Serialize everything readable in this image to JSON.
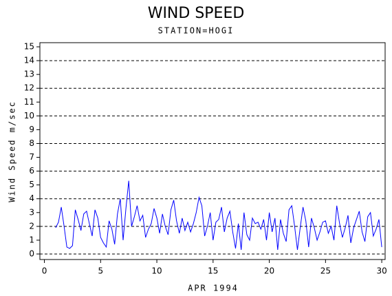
{
  "chart_data": {
    "type": "line",
    "title": "WIND SPEED",
    "subtitle": "STATION=HOGI",
    "x_label": "APR 1994",
    "y_label": "Wind Speed m/sec",
    "xlim": [
      -0.4,
      30.3
    ],
    "ylim": [
      -0.4,
      15.3
    ],
    "xticks": [
      0,
      5,
      10,
      15,
      20,
      25,
      30
    ],
    "yticks": [
      0,
      1,
      2,
      3,
      4,
      5,
      6,
      7,
      8,
      9,
      10,
      11,
      12,
      13,
      14,
      15
    ],
    "grid": true,
    "x": [
      1,
      1.25,
      1.5,
      1.75,
      2,
      2.25,
      2.5,
      2.75,
      3,
      3.25,
      3.5,
      3.75,
      4,
      4.25,
      4.5,
      4.75,
      5,
      5.25,
      5.5,
      5.75,
      6,
      6.25,
      6.5,
      6.75,
      7,
      7.25,
      7.5,
      7.75,
      8,
      8.25,
      8.5,
      8.75,
      9,
      9.25,
      9.5,
      9.75,
      10,
      10.25,
      10.5,
      10.75,
      11,
      11.25,
      11.5,
      11.75,
      12,
      12.25,
      12.5,
      12.75,
      13,
      13.25,
      13.5,
      13.75,
      14,
      14.25,
      14.5,
      14.75,
      15,
      15.25,
      15.5,
      15.75,
      16,
      16.25,
      16.5,
      16.75,
      17,
      17.25,
      17.5,
      17.75,
      18,
      18.25,
      18.5,
      18.75,
      19,
      19.25,
      19.5,
      19.75,
      20,
      20.25,
      20.5,
      20.75,
      21,
      21.25,
      21.5,
      21.75,
      22,
      22.25,
      22.5,
      22.75,
      23,
      23.25,
      23.5,
      23.75,
      24,
      24.25,
      24.5,
      24.75,
      25,
      25.25,
      25.5,
      25.75,
      26,
      26.25,
      26.5,
      26.75,
      27,
      27.25,
      27.5,
      27.75,
      28,
      28.25,
      28.5,
      28.75,
      29,
      29.25,
      29.5,
      29.75,
      30
    ],
    "series": [
      {
        "color": "#0000ff",
        "values": [
          1.9,
          2.3,
          3.4,
          2.0,
          0.5,
          0.4,
          0.6,
          3.2,
          2.5,
          1.7,
          2.9,
          3.1,
          2.2,
          1.3,
          3.2,
          2.6,
          1.2,
          0.8,
          0.5,
          2.4,
          1.8,
          0.7,
          2.9,
          4.0,
          1.0,
          3.3,
          5.3,
          2.0,
          2.7,
          3.5,
          2.4,
          2.8,
          1.2,
          1.8,
          2.2,
          3.3,
          2.6,
          1.5,
          2.9,
          2.0,
          1.4,
          3.2,
          3.9,
          2.4,
          1.5,
          2.6,
          1.7,
          2.3,
          1.6,
          2.2,
          3.0,
          4.1,
          3.5,
          1.3,
          2.0,
          3.0,
          1.0,
          2.3,
          2.5,
          3.4,
          1.6,
          2.6,
          3.1,
          1.6,
          0.4,
          2.2,
          0.3,
          3.0,
          1.4,
          1.0,
          2.6,
          2.2,
          2.3,
          1.8,
          2.5,
          1.0,
          3.0,
          1.6,
          2.6,
          0.3,
          2.5,
          1.5,
          0.9,
          3.2,
          3.5,
          2.0,
          0.3,
          1.9,
          3.4,
          2.4,
          0.5,
          2.6,
          1.9,
          1.0,
          1.6,
          2.3,
          2.4,
          1.5,
          2.0,
          1.0,
          3.5,
          2.2,
          1.2,
          1.9,
          2.8,
          0.8,
          1.9,
          2.5,
          3.1,
          1.6,
          0.9,
          2.7,
          3.0,
          1.3,
          1.8,
          2.5,
          0.5
        ]
      }
    ]
  }
}
